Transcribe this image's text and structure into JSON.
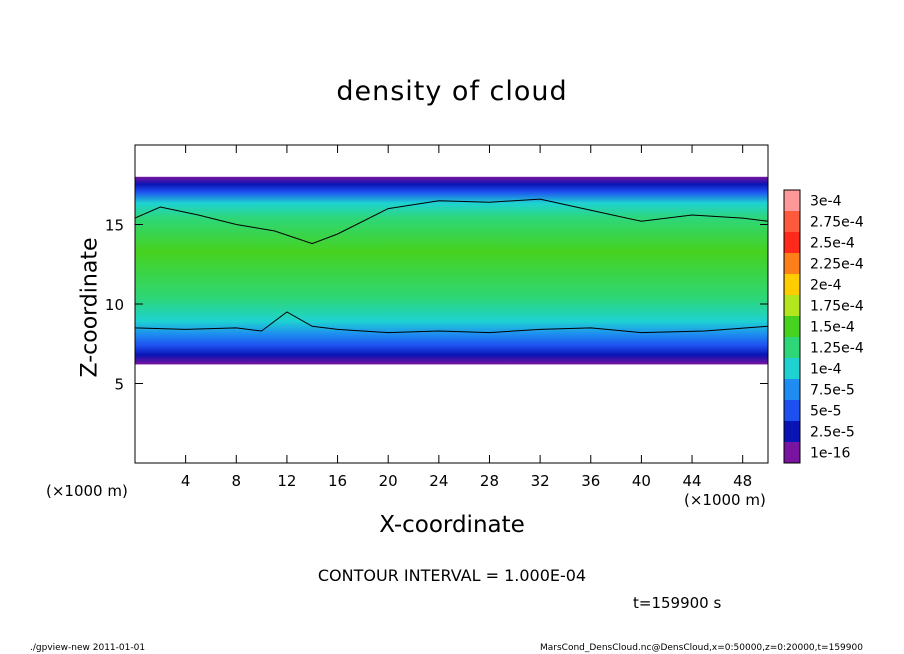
{
  "chart_data": {
    "type": "heatmap",
    "title": "density of cloud",
    "xlabel": "X-coordinate",
    "ylabel": "Z-coordinate",
    "x_unit": "(×1000 m)",
    "z_unit": "(×1000 m)",
    "xlim": [
      0,
      50
    ],
    "ylim": [
      0,
      20
    ],
    "x_ticks": [
      4,
      8,
      12,
      16,
      20,
      24,
      28,
      32,
      36,
      40,
      44,
      48
    ],
    "y_ticks": [
      5,
      10,
      15
    ],
    "cloud_band_z": [
      6.2,
      18
    ],
    "colorbar": {
      "labels": [
        "3e-4",
        "2.75e-4",
        "2.5e-4",
        "2.25e-4",
        "2e-4",
        "1.75e-4",
        "1.5e-4",
        "1.25e-4",
        "1e-4",
        "7.5e-5",
        "5e-5",
        "2.5e-5",
        "1e-16"
      ],
      "colors": [
        "#ff9999",
        "#ff5a3c",
        "#ff2a1a",
        "#ff7f1a",
        "#ffcc00",
        "#b4e61e",
        "#46d21e",
        "#2dd778",
        "#1ed2d2",
        "#1e8cf0",
        "#1e50f0",
        "#0a14b4",
        "#7814a0"
      ]
    },
    "contour_interval_text": "CONTOUR INTERVAL = 1.000E-04",
    "time_text": "t=159900 s"
  },
  "footer": {
    "left": "./gpview-new 2011-01-01",
    "right": "MarsCond_DensCloud.nc@DensCloud,x=0:50000,z=0:20000,t=159900"
  }
}
